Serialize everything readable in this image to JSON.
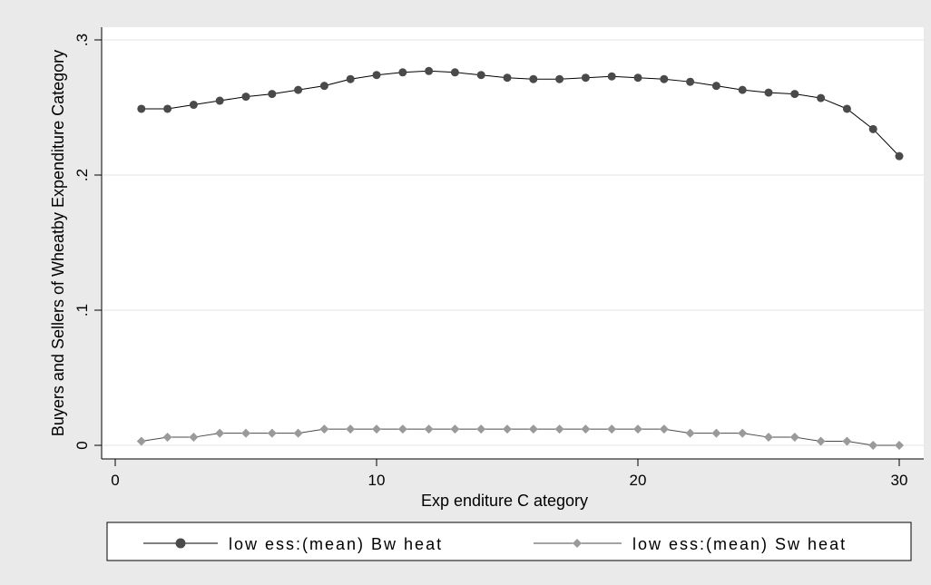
{
  "colors": {
    "background": "#eaeaea",
    "plot_background": "#ffffff",
    "grid": "#e3e3e3",
    "series_b_line": "#000000",
    "series_b_marker": "#4a4a4a",
    "series_s_line": "#4a4a4a",
    "series_s_marker": "#9a9a9a"
  },
  "chart_data": {
    "type": "line",
    "xlabel": "Exp enditure C ategory",
    "ylabel": "Buyers and Sellers of Wheatby Expenditure Category",
    "xlim": [
      1,
      30
    ],
    "ylim": [
      0,
      0.3
    ],
    "x_ticks": [
      0,
      10,
      20,
      30
    ],
    "x_tick_labels": [
      "0",
      "10",
      "20",
      "30"
    ],
    "y_ticks": [
      0,
      0.1,
      0.2,
      0.3
    ],
    "y_tick_labels": [
      "0",
      ".1",
      ".2",
      ".3"
    ],
    "grid": true,
    "legend_position": "bottom",
    "x": [
      1,
      2,
      3,
      4,
      5,
      6,
      7,
      8,
      9,
      10,
      11,
      12,
      13,
      14,
      15,
      16,
      17,
      18,
      19,
      20,
      21,
      22,
      23,
      24,
      25,
      26,
      27,
      28,
      29,
      30
    ],
    "series": [
      {
        "name": "lowess:(mean) Bwheat",
        "legend_label": "low ess:(mean) Bw heat",
        "marker": "circle",
        "values": [
          0.249,
          0.249,
          0.252,
          0.255,
          0.258,
          0.26,
          0.263,
          0.266,
          0.271,
          0.274,
          0.276,
          0.277,
          0.276,
          0.274,
          0.272,
          0.271,
          0.271,
          0.272,
          0.273,
          0.272,
          0.271,
          0.269,
          0.266,
          0.263,
          0.261,
          0.26,
          0.257,
          0.249,
          0.234,
          0.214
        ]
      },
      {
        "name": "lowess:(mean) Swheat",
        "legend_label": "low ess:(mean) Sw heat",
        "marker": "diamond",
        "values": [
          0.003,
          0.006,
          0.006,
          0.009,
          0.009,
          0.009,
          0.009,
          0.012,
          0.012,
          0.012,
          0.012,
          0.012,
          0.012,
          0.012,
          0.012,
          0.012,
          0.012,
          0.012,
          0.012,
          0.012,
          0.012,
          0.009,
          0.009,
          0.009,
          0.006,
          0.006,
          0.003,
          0.003,
          0.0,
          0.0
        ]
      }
    ]
  }
}
